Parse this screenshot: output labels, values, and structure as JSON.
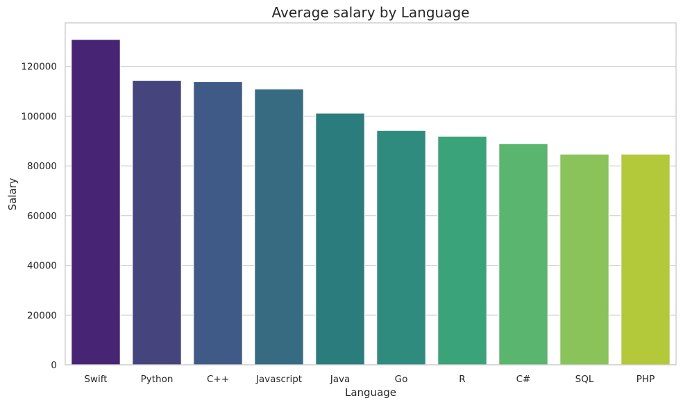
{
  "chart_data": {
    "type": "bar",
    "title": "Average salary by Language",
    "xlabel": "Language",
    "ylabel": "Salary",
    "categories": [
      "Swift",
      "Python",
      "C++",
      "Javascript",
      "Java",
      "Go",
      "R",
      "C#",
      "SQL",
      "PHP"
    ],
    "values": [
      130800,
      114300,
      113900,
      110900,
      101200,
      94200,
      91900,
      88900,
      84700,
      84700
    ],
    "colors": [
      "#482475",
      "#46447c",
      "#3f5a86",
      "#366b82",
      "#2b7c7d",
      "#2e8b7d",
      "#3ba37a",
      "#5ab56e",
      "#89c359",
      "#b3c93a"
    ],
    "ylim": [
      0,
      137500
    ],
    "yticks": [
      0,
      20000,
      40000,
      60000,
      80000,
      100000,
      120000
    ],
    "ytick_labels": [
      "0",
      "20000",
      "40000",
      "60000",
      "80000",
      "100000",
      "120000"
    ],
    "grid": true,
    "grid_axis": "y"
  }
}
